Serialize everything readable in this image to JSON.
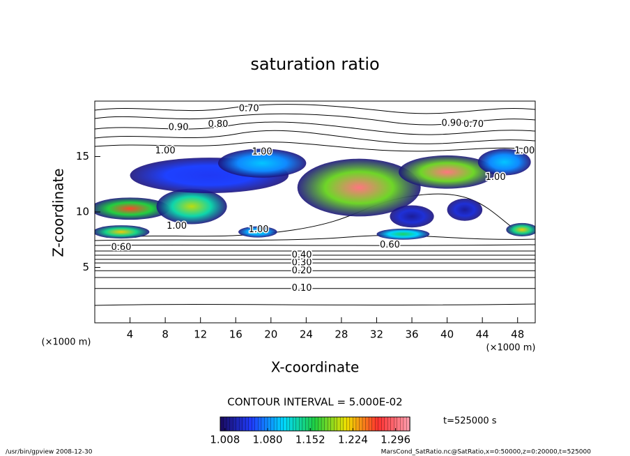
{
  "chart_data": {
    "type": "contour",
    "title": "saturation ratio",
    "x_label": "X-coordinate",
    "y_label": "Z-coordinate",
    "x_unit": "(×1000 m)",
    "y_unit": "(×1000 m)",
    "xlim": [
      0,
      50
    ],
    "ylim": [
      0,
      20
    ],
    "xticks": [
      4,
      8,
      12,
      16,
      20,
      24,
      28,
      32,
      36,
      40,
      44,
      48
    ],
    "yticks": [
      5,
      10,
      15
    ],
    "contour_interval": "CONTOUR INTERVAL = 5.000E-02",
    "time_label": "t=525000 s",
    "footer_left": "/usr/bin/gpview   2008-12-30",
    "footer_right": "MarsCond_SatRatio.nc@SatRatio,x=0:50000,z=0:20000,t=525000",
    "contours": [
      {
        "level": {
          "value": 0.1,
          "label": "0.10"
        },
        "z": 3.1
      },
      {
        "level": {
          "value": 0.2,
          "label": "0.20"
        },
        "z": 4.7
      },
      {
        "level": {
          "value": 0.3,
          "label": "0.30"
        },
        "z": 5.4
      },
      {
        "level": {
          "value": 0.4,
          "label": "0.40"
        },
        "z": 6.1
      }
    ],
    "annotations": [
      {
        "text": "0.70",
        "x": 17.5,
        "z": 19.3
      },
      {
        "text": "0.80",
        "x": 14,
        "z": 17.9
      },
      {
        "text": "0.90",
        "x": 9.5,
        "z": 17.6
      },
      {
        "text": "0.90",
        "x": 40.5,
        "z": 18.0
      },
      {
        "text": "0.70",
        "x": 43,
        "z": 17.9
      },
      {
        "text": "1.00",
        "x": 8,
        "z": 15.5
      },
      {
        "text": "1.00",
        "x": 19,
        "z": 15.4
      },
      {
        "text": "1.00",
        "x": 48.8,
        "z": 15.5
      },
      {
        "text": "1.00",
        "x": 45.5,
        "z": 13.1
      },
      {
        "text": "1.00",
        "x": 9.3,
        "z": 8.7
      },
      {
        "text": "1.00",
        "x": 18.6,
        "z": 8.4
      },
      {
        "text": "0.60",
        "x": 3,
        "z": 6.8
      },
      {
        "text": "0.60",
        "x": 33.5,
        "z": 7.0
      }
    ],
    "regions": [
      {
        "x": 3,
        "z": 8.2,
        "rx": 3.2,
        "rz": 0.6,
        "value": 1.22
      },
      {
        "x": 4,
        "z": 10.3,
        "rx": 4.5,
        "rz": 1.0,
        "value": 1.26
      },
      {
        "x": 11,
        "z": 10.5,
        "rx": 4,
        "rz": 1.6,
        "value": 1.2
      },
      {
        "x": 13,
        "z": 13.3,
        "rx": 9,
        "rz": 1.6,
        "value": 1.05
      },
      {
        "x": 19,
        "z": 14.4,
        "rx": 5,
        "rz": 1.3,
        "value": 1.1
      },
      {
        "x": 30,
        "z": 12.2,
        "rx": 7,
        "rz": 2.6,
        "value": 1.3
      },
      {
        "x": 40,
        "z": 13.6,
        "rx": 5.5,
        "rz": 1.5,
        "value": 1.3
      },
      {
        "x": 46.5,
        "z": 14.5,
        "rx": 3,
        "rz": 1.2,
        "value": 1.1
      },
      {
        "x": 18.5,
        "z": 8.2,
        "rx": 2.2,
        "rz": 0.5,
        "value": 1.12
      },
      {
        "x": 35,
        "z": 8.0,
        "rx": 3,
        "rz": 0.5,
        "value": 1.15
      },
      {
        "x": 36,
        "z": 9.6,
        "rx": 2.5,
        "rz": 1.0,
        "value": 1.02
      },
      {
        "x": 42,
        "z": 10.2,
        "rx": 2,
        "rz": 1.0,
        "value": 1.02
      },
      {
        "x": 48.5,
        "z": 8.4,
        "rx": 1.8,
        "rz": 0.6,
        "value": 1.22
      }
    ],
    "colormap": [
      "#1a0a5e",
      "#1f3cff",
      "#00d8ff",
      "#20d040",
      "#f0e000",
      "#ff3030",
      "#ffa0b0"
    ],
    "climits": [
      1.0,
      1.32
    ],
    "colorbar_ticks": [
      1.008,
      {
        "value": 1.08,
        "label": "1.080"
      },
      1.152,
      1.224,
      1.296
    ]
  }
}
